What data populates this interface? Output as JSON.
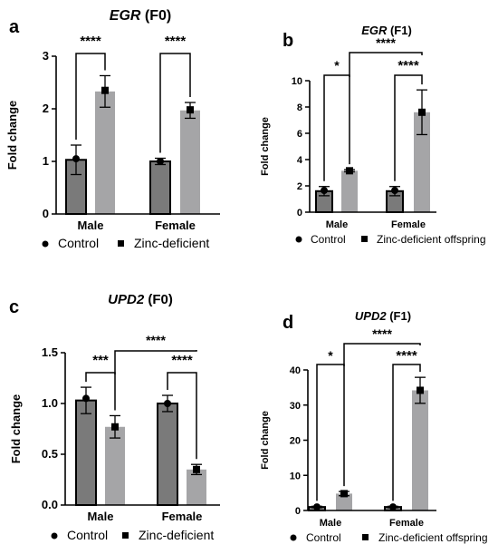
{
  "chart_data": [
    {
      "type": "bar",
      "panel_label": "a",
      "title_gene": "EGR",
      "title_suffix": " (F0)",
      "ylabel": "Fold change",
      "ylim": [
        0,
        3
      ],
      "yticks": [
        "0",
        "1",
        "2",
        "3"
      ],
      "categories": [
        "Male",
        "Female"
      ],
      "series": [
        {
          "name": "Control",
          "color": "#7a7a7a",
          "marker": "circle",
          "values": [
            1.03,
            1.0
          ],
          "errors": [
            0.28,
            0.06
          ],
          "points": [
            1.05,
            1.0
          ]
        },
        {
          "name": "Zinc-deficient",
          "color": "#a5a5a7",
          "marker": "square",
          "values": [
            2.33,
            1.97
          ],
          "errors": [
            0.3,
            0.15
          ],
          "points": [
            2.35,
            1.98
          ]
        }
      ],
      "annotations": [
        {
          "kind": "within",
          "cat": 0,
          "label": "****"
        },
        {
          "kind": "within",
          "cat": 1,
          "label": "****"
        }
      ]
    },
    {
      "type": "bar",
      "panel_label": "b",
      "title_gene": "EGR",
      "title_suffix": " (F1)",
      "ylabel": "Fold change",
      "ylim": [
        0,
        10
      ],
      "yticks": [
        "0",
        "2",
        "4",
        "6",
        "8",
        "10"
      ],
      "categories": [
        "Male",
        "Female"
      ],
      "series": [
        {
          "name": "Control",
          "color": "#7a7a7a",
          "marker": "circle",
          "values": [
            1.6,
            1.6
          ],
          "errors": [
            0.35,
            0.35
          ],
          "points": [
            1.65,
            1.65
          ]
        },
        {
          "name": "Zinc-deficient offspring",
          "color": "#a5a5a7",
          "marker": "square",
          "values": [
            3.15,
            7.6
          ],
          "errors": [
            0.08,
            1.7
          ],
          "points": [
            3.15,
            7.6
          ]
        }
      ],
      "annotations": [
        {
          "kind": "within",
          "cat": 0,
          "label": "*"
        },
        {
          "kind": "within",
          "cat": 1,
          "label": "****"
        },
        {
          "kind": "between",
          "label": "****"
        }
      ]
    },
    {
      "type": "bar",
      "panel_label": "c",
      "title_gene": "UPD2",
      "title_suffix": " (F0)",
      "ylabel": "Fold change",
      "ylim": [
        0,
        1.5
      ],
      "yticks": [
        "0.0",
        "0.5",
        "1.0",
        "1.5"
      ],
      "categories": [
        "Male",
        "Female"
      ],
      "series": [
        {
          "name": "Control",
          "color": "#7a7a7a",
          "marker": "circle",
          "values": [
            1.03,
            1.0
          ],
          "errors": [
            0.13,
            0.08
          ],
          "points": [
            1.05,
            1.0
          ]
        },
        {
          "name": "Zinc-deficient",
          "color": "#a5a5a7",
          "marker": "square",
          "values": [
            0.77,
            0.35
          ],
          "errors": [
            0.11,
            0.05
          ],
          "points": [
            0.77,
            0.35
          ]
        }
      ],
      "annotations": [
        {
          "kind": "within",
          "cat": 0,
          "label": "***"
        },
        {
          "kind": "within",
          "cat": 1,
          "label": "****"
        },
        {
          "kind": "between",
          "label": "****"
        }
      ]
    },
    {
      "type": "bar",
      "panel_label": "d",
      "title_gene": "UPD2",
      "title_suffix": " (F1)",
      "ylabel": "Fold change",
      "ylim": [
        0,
        40
      ],
      "yticks": [
        "0",
        "10",
        "20",
        "30",
        "40"
      ],
      "categories": [
        "Male",
        "Female"
      ],
      "series": [
        {
          "name": "Control",
          "color": "#7a7a7a",
          "marker": "circle",
          "values": [
            1.0,
            1.0
          ],
          "errors": [
            0.2,
            0.2
          ],
          "points": [
            1.0,
            1.0
          ]
        },
        {
          "name": "Zinc-deficient offspring",
          "color": "#a5a5a7",
          "marker": "square",
          "values": [
            4.8,
            34.2
          ],
          "errors": [
            0.6,
            3.7
          ],
          "points": [
            4.8,
            34.2
          ]
        }
      ],
      "annotations": [
        {
          "kind": "within",
          "cat": 0,
          "label": "*"
        },
        {
          "kind": "within",
          "cat": 1,
          "label": "****"
        },
        {
          "kind": "between",
          "label": "****"
        }
      ]
    }
  ]
}
